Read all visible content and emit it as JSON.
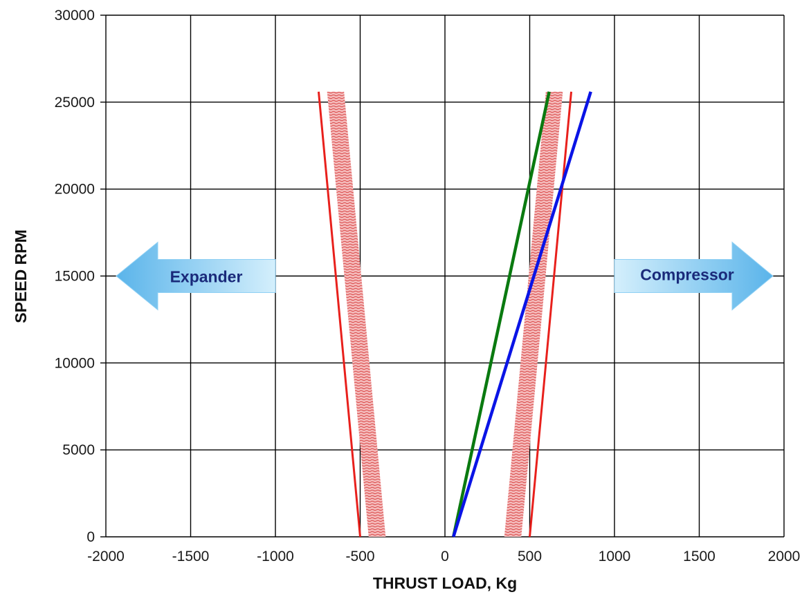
{
  "chart_data": {
    "type": "line",
    "title": "",
    "xlabel": "THRUST LOAD, Kg",
    "ylabel": "SPEED RPM",
    "xlim": [
      -2000,
      2000
    ],
    "ylim": [
      0,
      30000
    ],
    "x_ticks": [
      "-2000",
      "-1500",
      "-1000",
      "-500",
      "0",
      "500",
      "1000",
      "1500",
      "2000"
    ],
    "y_ticks": [
      "0",
      "5000",
      "10000",
      "15000",
      "20000",
      "25000",
      "30000"
    ],
    "grid": true,
    "colors": {
      "limit": "#e8201c",
      "band": "#f0a8a8",
      "band_hatch": "#d84040",
      "green": "#0a7a10",
      "blue": "#0a14e6",
      "arrow_light": "#d4effc",
      "arrow_dark": "#5ab4ea"
    },
    "limit_lines": [
      {
        "points": [
          [
            -500,
            0
          ],
          [
            -745,
            25600
          ]
        ]
      },
      {
        "points": [
          [
            500,
            0
          ],
          [
            745,
            25600
          ]
        ]
      }
    ],
    "bands": [
      {
        "polygon": [
          [
            -450,
            0
          ],
          [
            -350,
            0
          ],
          [
            -595,
            25600
          ],
          [
            -695,
            25600
          ]
        ]
      },
      {
        "polygon": [
          [
            350,
            0
          ],
          [
            450,
            0
          ],
          [
            695,
            25600
          ],
          [
            595,
            25600
          ]
        ]
      }
    ],
    "series": [
      {
        "color": "green",
        "points": [
          [
            50,
            0
          ],
          [
            615,
            25600
          ]
        ]
      },
      {
        "color": "blue",
        "points": [
          [
            50,
            0
          ],
          [
            860,
            25600
          ]
        ]
      }
    ],
    "annotations": [
      {
        "text": "Expander",
        "direction": "left",
        "x": -1400,
        "y": 15000
      },
      {
        "text": "Compressor",
        "direction": "right",
        "x": 1400,
        "y": 15000
      }
    ]
  }
}
